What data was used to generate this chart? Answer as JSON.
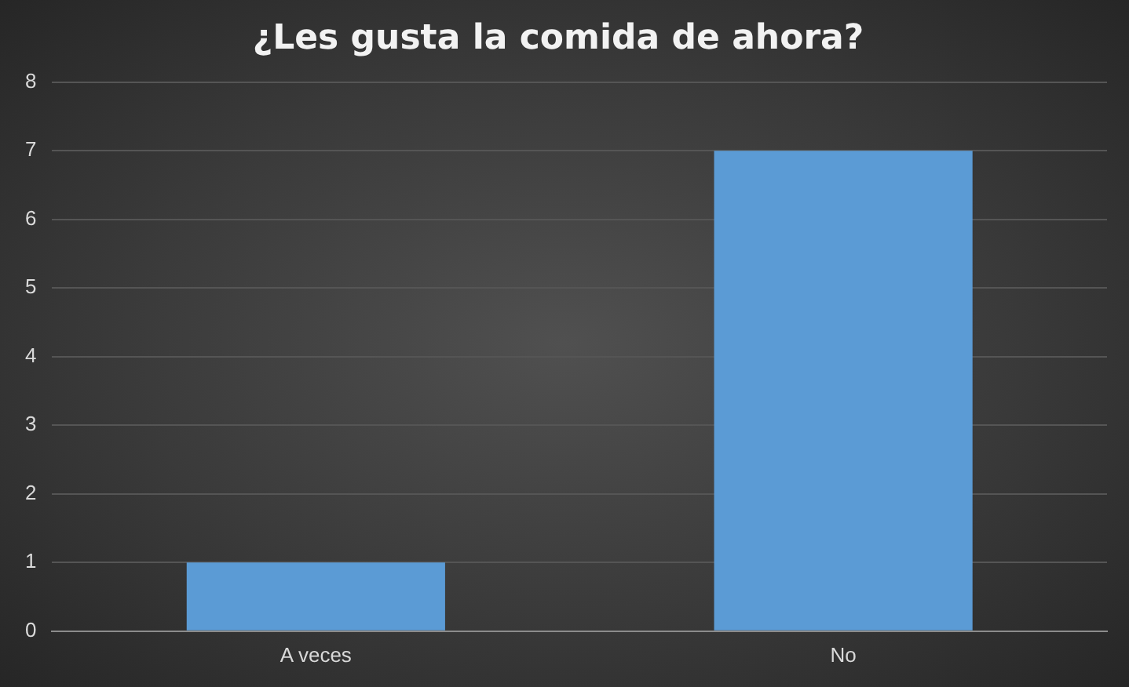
{
  "chart_data": {
    "type": "bar",
    "title": "¿Les gusta la comida de ahora?",
    "categories": [
      "A veces",
      "No"
    ],
    "values": [
      1,
      7
    ],
    "color": "#5b9bd5",
    "ylim": [
      0,
      8
    ],
    "yticks": [
      0,
      1,
      2,
      3,
      4,
      5,
      6,
      7,
      8
    ],
    "grid": "y",
    "legend": false
  }
}
